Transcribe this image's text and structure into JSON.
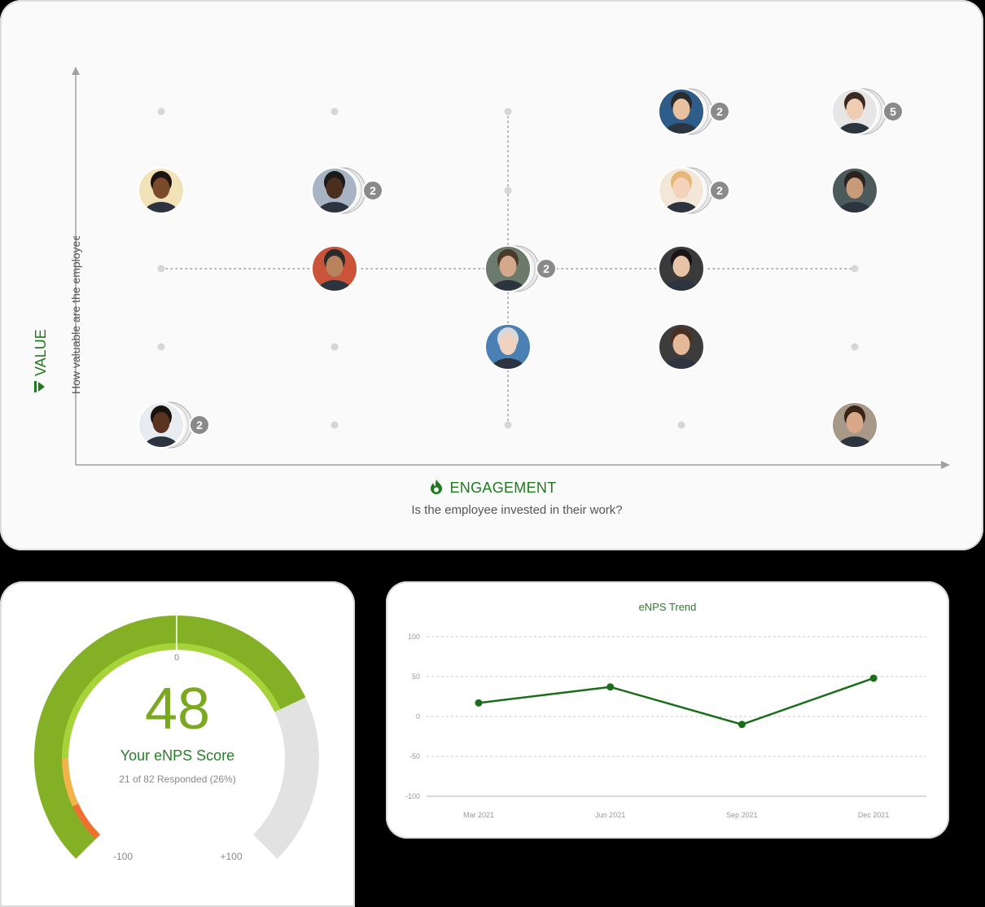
{
  "matrix": {
    "x_title": "ENGAGEMENT",
    "x_subtitle": "Is the employee invested in their work?",
    "y_title": "VALUE",
    "y_subtitle": "How valuable are the employee's contributions?",
    "colors": {
      "accent": "#1f7a1f",
      "badge": "#8a8a8a",
      "dot": "#d6d6d6",
      "axis": "#a0a0a0"
    },
    "people": [
      {
        "col": 4,
        "row": 1,
        "count": "2",
        "skin": "#e8c2a0",
        "hair": "#2b2b2b",
        "bg": "#2f5d8a"
      },
      {
        "col": 5,
        "row": 1,
        "count": "5",
        "skin": "#f0cdb2",
        "hair": "#3b2a20",
        "bg": "#e6e6e6"
      },
      {
        "col": 1,
        "row": 2,
        "count": "",
        "skin": "#7a4a2a",
        "hair": "#1c1410",
        "bg": "#f2e2b8"
      },
      {
        "col": 2,
        "row": 2,
        "count": "2",
        "skin": "#4a2e1e",
        "hair": "#1a1a1a",
        "bg": "#a8b4c4"
      },
      {
        "col": 4,
        "row": 2,
        "count": "2",
        "skin": "#f5d3bb",
        "hair": "#e6b878",
        "bg": "#f3e7d9"
      },
      {
        "col": 5,
        "row": 2,
        "count": "",
        "skin": "#c79a7a",
        "hair": "#2a221e",
        "bg": "#4c5a5c"
      },
      {
        "col": 2,
        "row": 3,
        "count": "",
        "skin": "#b8825c",
        "hair": "#2a2a2a",
        "bg": "#c9543a"
      },
      {
        "col": 3,
        "row": 3,
        "count": "2",
        "skin": "#d4a88a",
        "hair": "#4a3a2a",
        "bg": "#6b7a6a"
      },
      {
        "col": 4,
        "row": 3,
        "count": "",
        "skin": "#e8c4a6",
        "hair": "#1a1414",
        "bg": "#3a3a3a"
      },
      {
        "col": 3,
        "row": 4,
        "count": "",
        "skin": "#f0d2c0",
        "hair": "#d8d8d8",
        "bg": "#4a80b4"
      },
      {
        "col": 4,
        "row": 4,
        "count": "",
        "skin": "#e4b898",
        "hair": "#4a3020",
        "bg": "#3c3c3c"
      },
      {
        "col": 1,
        "row": 5,
        "count": "2",
        "skin": "#5a3420",
        "hair": "#1a1410",
        "bg": "#e8ecf0"
      },
      {
        "col": 5,
        "row": 5,
        "count": "",
        "skin": "#d8a888",
        "hair": "#3a2418",
        "bg": "#a89888"
      }
    ]
  },
  "gauge": {
    "score": "48",
    "label": "Your eNPS Score",
    "responded": "21 of 82 Responded (26%)",
    "zero_label": "0",
    "min_label": "-100",
    "max_label": "+100",
    "value": 48,
    "colors": {
      "green": "#84b025",
      "light_green": "#a6d33a",
      "amber": "#f2b34a",
      "orange": "#f07030",
      "grey": "#e2e2e2"
    }
  },
  "trend": {
    "title": "eNPS Trend",
    "colors": {
      "line": "#1a6e1a"
    }
  },
  "chart_data": {
    "type": "line",
    "title": "eNPS Trend",
    "x": [
      "Mar 2021",
      "Jun 2021",
      "Sep 2021",
      "Dec 2021"
    ],
    "y_ticks": [
      "100",
      "50",
      "0",
      "-50",
      "-100"
    ],
    "ylim": [
      -100,
      100
    ],
    "grid": true,
    "series": [
      {
        "values": [
          17,
          37,
          -10,
          48
        ]
      }
    ]
  }
}
